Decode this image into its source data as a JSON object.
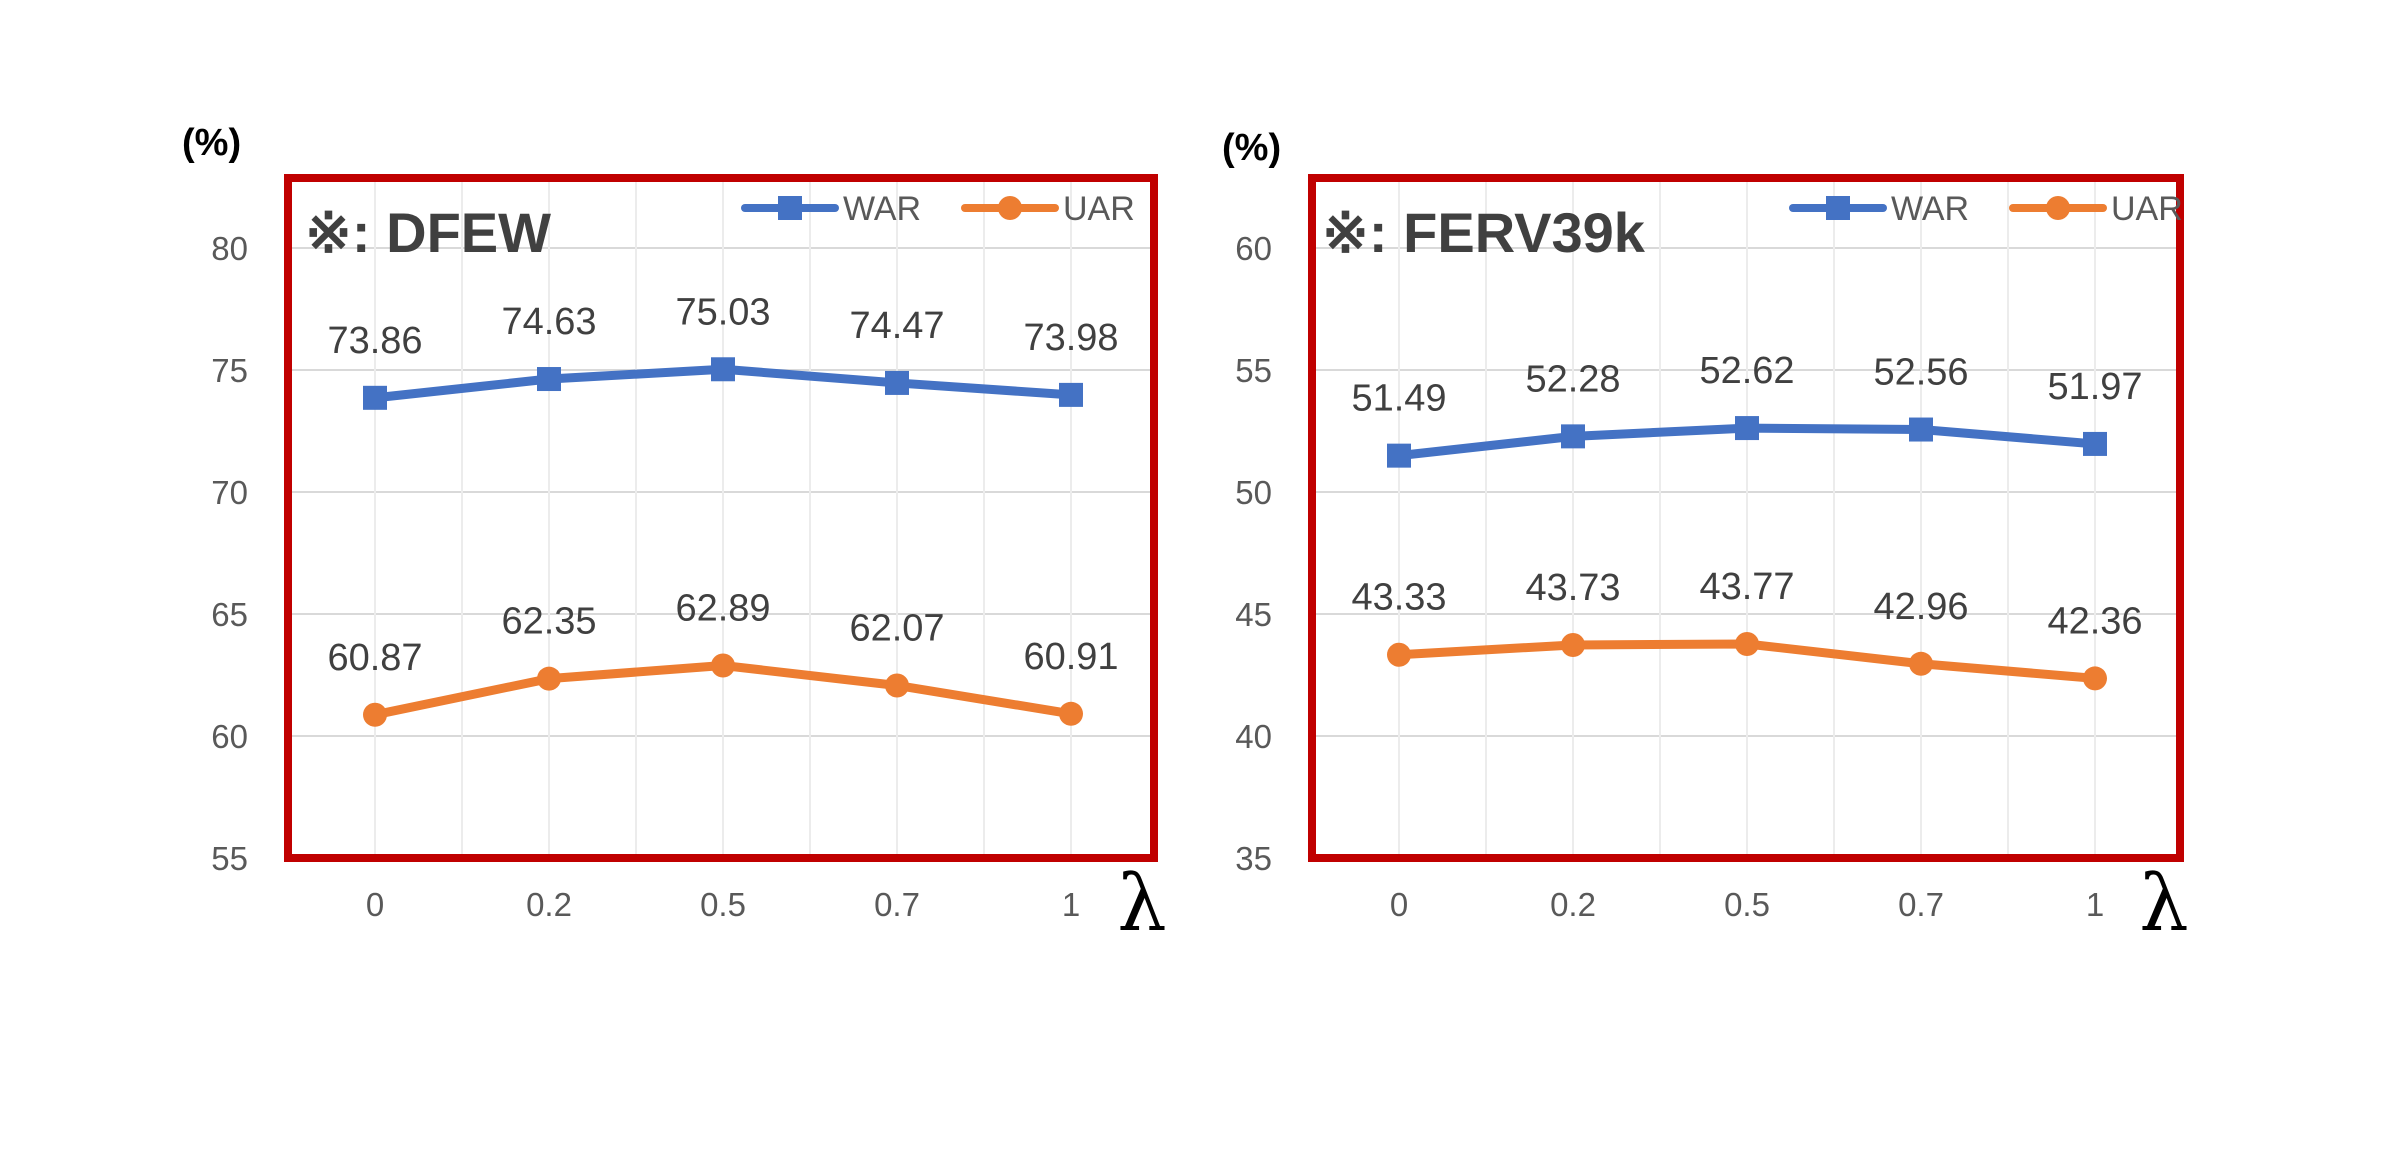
{
  "chart_data": [
    {
      "type": "line",
      "title": "※: DFEW",
      "ylabel": "(%)",
      "xlabel": "λ",
      "categories": [
        "0",
        "0.2",
        "0.5",
        "0.7",
        "1"
      ],
      "ylim": [
        55,
        80
      ],
      "yticks": [
        55,
        60,
        65,
        70,
        75,
        80
      ],
      "grid": true,
      "legend": "top-right",
      "series": [
        {
          "name": "WAR",
          "values": [
            73.86,
            74.63,
            75.03,
            74.47,
            73.98
          ],
          "labels": [
            "73.86",
            "74.63",
            "75.03",
            "74.47",
            "73.98"
          ],
          "color": "#4472C4",
          "marker": "square"
        },
        {
          "name": "UAR",
          "values": [
            60.87,
            62.35,
            62.89,
            62.07,
            60.91
          ],
          "labels": [
            "60.87",
            "62.35",
            "62.89",
            "62.07",
            "60.91"
          ],
          "color": "#ED7D31",
          "marker": "circle"
        }
      ],
      "frame_color": "#C00000"
    },
    {
      "type": "line",
      "title": "※: FERV39k",
      "ylabel": "(%)",
      "xlabel": "λ",
      "categories": [
        "0",
        "0.2",
        "0.5",
        "0.7",
        "1"
      ],
      "ylim": [
        35,
        60
      ],
      "yticks": [
        35,
        40,
        45,
        50,
        55,
        60
      ],
      "grid": true,
      "legend": "top-right",
      "series": [
        {
          "name": "WAR",
          "values": [
            51.49,
            52.28,
            52.62,
            52.56,
            51.97
          ],
          "labels": [
            "51.49",
            "52.28",
            "52.62",
            "52.56",
            "51.97"
          ],
          "color": "#4472C4",
          "marker": "square"
        },
        {
          "name": "UAR",
          "values": [
            43.33,
            43.73,
            43.77,
            42.96,
            42.36
          ],
          "labels": [
            "43.33",
            "43.73",
            "43.77",
            "42.96",
            "42.36"
          ],
          "color": "#ED7D31",
          "marker": "circle"
        }
      ],
      "frame_color": "#C00000"
    }
  ]
}
